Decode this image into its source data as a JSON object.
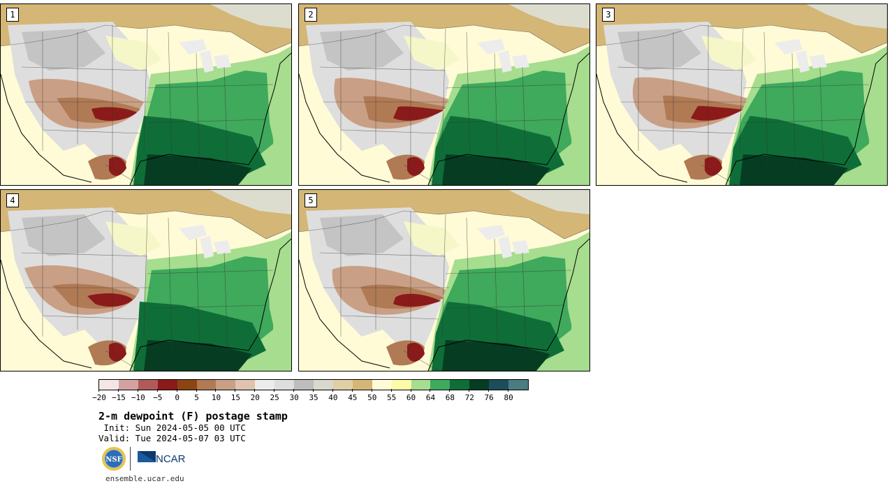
{
  "panels": [
    {
      "label": "1"
    },
    {
      "label": "2"
    },
    {
      "label": "3"
    },
    {
      "label": "4"
    },
    {
      "label": "5"
    }
  ],
  "colorbar": {
    "colors": [
      "#f5e6e6",
      "#d4a1a1",
      "#b05a5a",
      "#8b1a1a",
      "#8b4513",
      "#b07a55",
      "#c9a085",
      "#dfc3b0",
      "#ececec",
      "#dedede",
      "#bdbdbd",
      "#d8d8cf",
      "#e0cfa5",
      "#d4b676",
      "#fffbd6",
      "#fbfba8",
      "#a6dd8e",
      "#3fa95c",
      "#0f6e38",
      "#063d22",
      "#1d4d5a",
      "#4b7d80"
    ],
    "tick_labels": [
      "−20",
      "−15",
      "−10",
      "−5",
      "0",
      "5",
      "10",
      "15",
      "20",
      "25",
      "30",
      "35",
      "40",
      "45",
      "50",
      "55",
      "60",
      "64",
      "68",
      "72",
      "76",
      "80"
    ]
  },
  "title": "2-m dewpoint (F) postage stamp",
  "init": " Init: Sun 2024-05-05 00 UTC",
  "valid": "Valid: Tue 2024-05-07 03 UTC",
  "logos": {
    "left": "NSF",
    "right": "NCAR"
  },
  "site": "ensemble.ucar.edu"
}
